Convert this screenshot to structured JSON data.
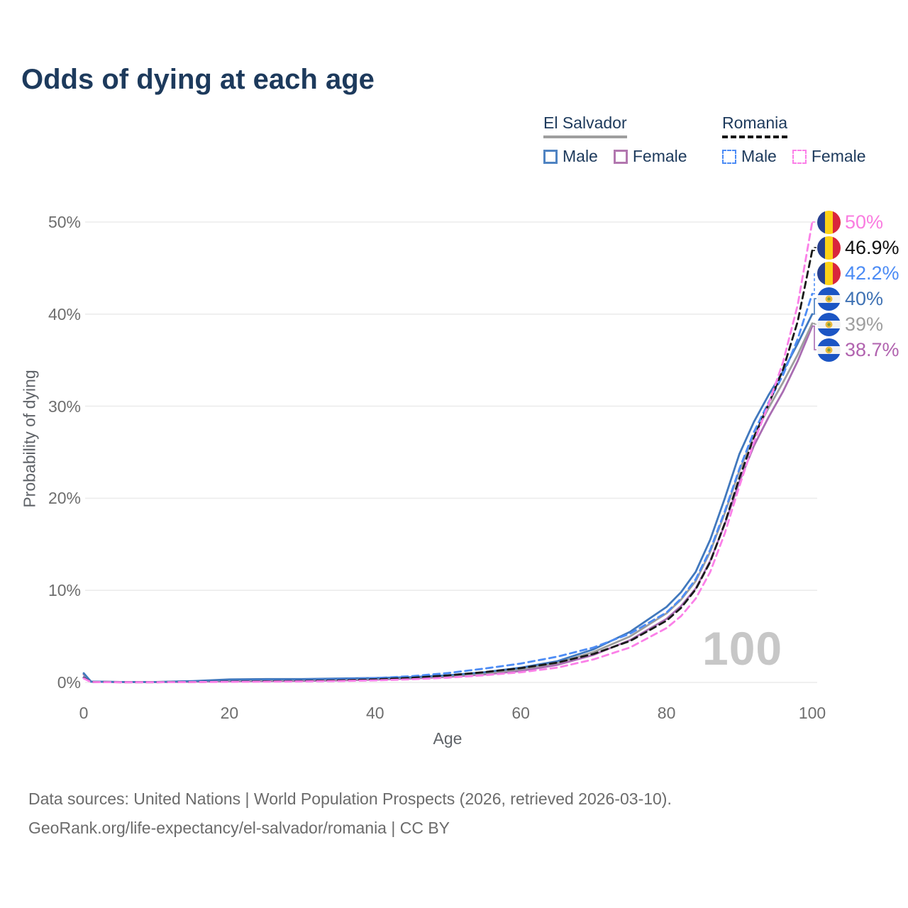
{
  "header": {
    "title": "Odds of dying at each age"
  },
  "legend": {
    "groups": [
      {
        "label": "El Salvador",
        "underline": {
          "style": "solid",
          "color": "#9e9e9e"
        },
        "items": [
          {
            "label": "Male",
            "color": "#4f83c2",
            "style": "solid"
          },
          {
            "label": "Female",
            "color": "#b277af",
            "style": "solid"
          }
        ]
      },
      {
        "label": "Romania",
        "underline": {
          "style": "dashed",
          "color": "#151515"
        },
        "items": [
          {
            "label": "Male",
            "color": "#4d8cf5",
            "style": "dashed"
          },
          {
            "label": "Female",
            "color": "#fb80e8",
            "style": "dashed"
          }
        ]
      }
    ]
  },
  "chart_data": {
    "type": "line",
    "title": "Odds of dying at each age",
    "xlabel": "Age",
    "ylabel": "Probability of dying",
    "grid": "horizontal",
    "legend_position": "top-right",
    "watermark": "100",
    "xlim": [
      0,
      100
    ],
    "ylim_pct": [
      0,
      50
    ],
    "x_ticks": [
      {
        "label": "0",
        "value": 0
      },
      {
        "label": "20",
        "value": 20
      },
      {
        "label": "40",
        "value": 40
      },
      {
        "label": "60",
        "value": 60
      },
      {
        "label": "80",
        "value": 80
      },
      {
        "label": "100",
        "value": 100
      }
    ],
    "y_ticks": [
      {
        "label": "0%",
        "value": 0
      },
      {
        "label": "10%",
        "value": 10
      },
      {
        "label": "20%",
        "value": 20
      },
      {
        "label": "30%",
        "value": 30
      },
      {
        "label": "40%",
        "value": 40
      },
      {
        "label": "50%",
        "value": 50
      }
    ],
    "x": [
      0,
      1,
      5,
      10,
      15,
      20,
      25,
      30,
      35,
      40,
      45,
      50,
      55,
      60,
      65,
      70,
      75,
      80,
      82,
      84,
      86,
      88,
      90,
      92,
      94,
      96,
      98,
      100
    ],
    "series": [
      {
        "name": "Romania — Female",
        "country": "Romania",
        "sex": "Female",
        "color": "#fb80e8",
        "dash": "dashed",
        "flag": "romania-flag",
        "end_label": "50%",
        "label_color": "#fa7ce0",
        "values": [
          0.45,
          0.04,
          0.02,
          0.02,
          0.04,
          0.06,
          0.08,
          0.11,
          0.15,
          0.22,
          0.34,
          0.52,
          0.78,
          1.1,
          1.6,
          2.5,
          3.8,
          5.9,
          7.2,
          9.1,
          12.0,
          16.2,
          21.3,
          26.1,
          30.2,
          34.8,
          41.0,
          50.0
        ]
      },
      {
        "name": "Romania — Both sexes",
        "country": "Romania",
        "sex": "Both",
        "color": "#1a1a1a",
        "dash": "dashed",
        "flag": "romania-flag",
        "end_label": "46.9%",
        "label_color": "#111111",
        "values": [
          0.5,
          0.045,
          0.025,
          0.025,
          0.05,
          0.09,
          0.12,
          0.16,
          0.23,
          0.34,
          0.5,
          0.76,
          1.12,
          1.55,
          2.15,
          3.1,
          4.5,
          6.7,
          8.1,
          10.1,
          13.1,
          17.3,
          22.2,
          26.6,
          30.2,
          34.0,
          39.2,
          46.9
        ]
      },
      {
        "name": "Romania — Male",
        "country": "Romania",
        "sex": "Male",
        "color": "#4d8cf5",
        "dash": "dashed",
        "flag": "romania-flag",
        "end_label": "42.2%",
        "label_color": "#4b8bf5",
        "values": [
          0.55,
          0.05,
          0.03,
          0.03,
          0.06,
          0.12,
          0.16,
          0.22,
          0.32,
          0.47,
          0.68,
          1.02,
          1.5,
          2.05,
          2.8,
          3.8,
          5.3,
          7.6,
          9.1,
          11.2,
          14.4,
          18.6,
          23.2,
          27.2,
          30.4,
          33.4,
          37.3,
          42.2
        ]
      },
      {
        "name": "El Salvador — Male",
        "country": "El Salvador",
        "sex": "Male",
        "color": "#4178bd",
        "dash": "solid",
        "flag": "el-salvador-flag",
        "end_label": "40%",
        "label_color": "#3f72b4",
        "values": [
          1.0,
          0.09,
          0.05,
          0.05,
          0.15,
          0.32,
          0.36,
          0.36,
          0.42,
          0.48,
          0.58,
          0.78,
          1.1,
          1.6,
          2.3,
          3.6,
          5.5,
          8.2,
          9.8,
          12.0,
          15.5,
          20.0,
          24.8,
          28.3,
          31.2,
          33.8,
          36.8,
          40.0
        ]
      },
      {
        "name": "El Salvador — Both sexes",
        "country": "El Salvador",
        "sex": "Both",
        "color": "#9e9e9e",
        "dash": "solid",
        "flag": "el-salvador-flag",
        "end_label": "39%",
        "label_color": "#9e9e9e",
        "values": [
          0.93,
          0.085,
          0.045,
          0.045,
          0.12,
          0.22,
          0.25,
          0.27,
          0.32,
          0.39,
          0.5,
          0.69,
          0.99,
          1.43,
          2.1,
          3.3,
          5.0,
          7.5,
          9.0,
          11.0,
          14.2,
          18.4,
          23.0,
          26.8,
          29.8,
          32.6,
          35.6,
          39.0
        ]
      },
      {
        "name": "El Salvador — Female",
        "country": "El Salvador",
        "sex": "Female",
        "color": "#a96cb2",
        "dash": "solid",
        "flag": "el-salvador-flag",
        "end_label": "38.7%",
        "label_color": "#b163af",
        "values": [
          0.85,
          0.08,
          0.04,
          0.04,
          0.08,
          0.12,
          0.14,
          0.17,
          0.22,
          0.3,
          0.42,
          0.6,
          0.87,
          1.25,
          1.9,
          3.0,
          4.6,
          6.9,
          8.3,
          10.2,
          13.2,
          17.2,
          21.8,
          25.7,
          28.8,
          31.6,
          34.9,
          38.7
        ]
      }
    ]
  },
  "icons": {
    "romania-flag": {
      "type": "vertical-tricolor",
      "colors": [
        "#27408f",
        "#fcd116",
        "#d9263c"
      ]
    },
    "el-salvador-flag": {
      "type": "horizontal-triband",
      "colors": [
        "#1b55c4",
        "#f2f2f2",
        "#1b55c4"
      ],
      "emblem": "#e8b93b"
    }
  },
  "footer": {
    "line1": "Data sources: United Nations | World Population Prospects (2026, retrieved 2026-03-10).",
    "line2": "GeoRank.org/life-expectancy/el-salvador/romania | CC BY"
  }
}
